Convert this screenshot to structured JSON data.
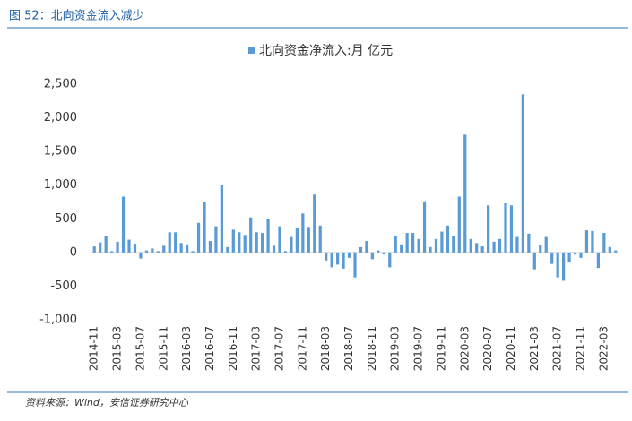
{
  "header": {
    "title": "图 52：北向资金流入减少"
  },
  "source": "资料来源：Wind，安信证券研究中心",
  "chart_data": {
    "type": "bar",
    "series": [
      {
        "name": "北向资金净流入:月 亿元",
        "color": "#5b9bd5",
        "values": [
          90,
          150,
          250,
          20,
          160,
          830,
          190,
          130,
          -90,
          30,
          60,
          20,
          100,
          300,
          300,
          140,
          120,
          20,
          440,
          750,
          170,
          390,
          1010,
          80,
          340,
          300,
          260,
          520,
          300,
          290,
          500,
          100,
          390,
          20,
          230,
          360,
          580,
          380,
          860,
          400,
          -120,
          -220,
          -180,
          -240,
          -80,
          -370,
          80,
          170,
          -100,
          30,
          -30,
          -220,
          250,
          120,
          290,
          290,
          200,
          760,
          80,
          200,
          310,
          400,
          240,
          830,
          1750,
          200,
          140,
          90,
          700,
          160,
          200,
          730,
          700,
          230,
          2350,
          280,
          -250,
          110,
          230,
          -170,
          -370,
          -420,
          -150,
          -30,
          -80,
          330,
          320,
          -230,
          290,
          80,
          30
        ]
      }
    ],
    "categories": [
      "2014-11",
      null,
      null,
      null,
      "2015-03",
      null,
      null,
      null,
      "2015-07",
      null,
      null,
      null,
      "2015-11",
      null,
      null,
      null,
      "2016-03",
      null,
      null,
      null,
      "2016-07",
      null,
      null,
      null,
      "2016-11",
      null,
      null,
      null,
      "2017-03",
      null,
      null,
      null,
      "2017-07",
      null,
      null,
      null,
      "2017-11",
      null,
      null,
      null,
      "2018-03",
      null,
      null,
      null,
      "2018-07",
      null,
      null,
      null,
      "2018-11",
      null,
      null,
      null,
      "2019-03",
      null,
      null,
      null,
      "2019-07",
      null,
      null,
      null,
      "2019-11",
      null,
      null,
      null,
      "2020-03",
      null,
      null,
      null,
      "2020-07",
      null,
      null,
      null,
      "2020-11",
      null,
      null,
      null,
      "2021-03",
      null,
      null,
      null,
      "2021-07",
      null,
      null,
      null,
      "2021-11",
      null,
      null,
      null,
      "2022-03",
      null,
      null
    ],
    "ylim": [
      -1000,
      2500
    ],
    "yticks": [
      {
        "value": -1000,
        "label": "-1,000"
      },
      -500,
      0,
      500,
      {
        "value": 1000,
        "label": "1,000"
      },
      {
        "value": 1500,
        "label": "1,500"
      },
      {
        "value": 2000,
        "label": "2,000"
      },
      {
        "value": 2500,
        "label": "2,500"
      }
    ],
    "legend": "top"
  }
}
